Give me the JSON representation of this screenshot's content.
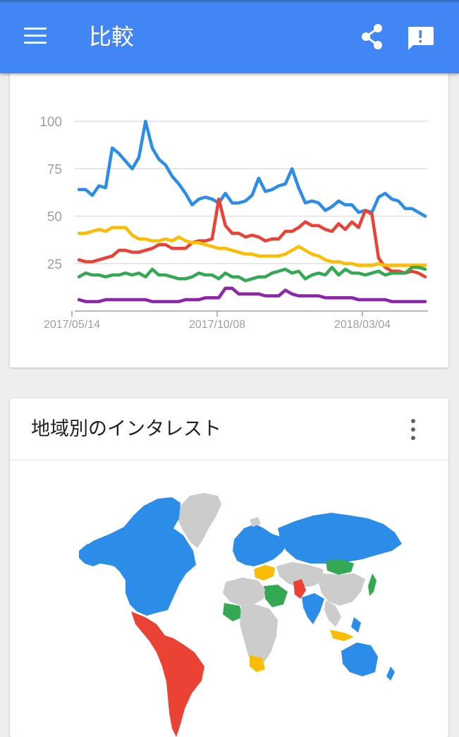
{
  "appbar": {
    "title": "比較",
    "color": "#4285f4",
    "menu_icon": "hamburger-menu-icon",
    "share_icon": "share-icon",
    "feedback_icon": "feedback-icon"
  },
  "chart_data": {
    "type": "line",
    "ylim": [
      0,
      100
    ],
    "y_ticks": [
      "100",
      "75",
      "50",
      "25"
    ],
    "x_ticks": [
      "2017/05/14",
      "2017/10/08",
      "2018/03/04"
    ],
    "grid": true,
    "series": [
      {
        "color": "#2b8de8",
        "values": [
          64,
          64,
          61,
          66,
          65,
          86,
          83,
          79,
          75,
          81,
          100,
          86,
          80,
          77,
          71,
          67,
          62,
          56,
          59,
          60,
          59,
          57,
          62,
          57,
          57,
          58,
          61,
          70,
          63,
          64,
          66,
          67,
          75,
          65,
          57,
          58,
          57,
          53,
          55,
          58,
          56,
          56,
          52,
          53,
          52,
          60,
          62,
          59,
          58,
          54,
          54,
          52,
          50
        ]
      },
      {
        "color": "#ea4335",
        "values": [
          27,
          26,
          26,
          27,
          28,
          29,
          32,
          32,
          31,
          31,
          32,
          33,
          35,
          35,
          33,
          33,
          33,
          36,
          37,
          37,
          38,
          59,
          45,
          41,
          41,
          39,
          40,
          39,
          37,
          38,
          38,
          42,
          42,
          44,
          47,
          45,
          45,
          43,
          42,
          46,
          43,
          47,
          44,
          53,
          51,
          28,
          23,
          21,
          21,
          20,
          21,
          20,
          18
        ]
      },
      {
        "color": "#fbbc05",
        "values": [
          41,
          41,
          42,
          43,
          42,
          44,
          44,
          44,
          40,
          38,
          38,
          37,
          37,
          38,
          37,
          39,
          37,
          36,
          36,
          35,
          34,
          33,
          33,
          32,
          31,
          30,
          30,
          29,
          29,
          29,
          29,
          30,
          32,
          34,
          32,
          30,
          29,
          27,
          26,
          26,
          25,
          25,
          24,
          24,
          24,
          25,
          24,
          24,
          24,
          24,
          24,
          24,
          24
        ]
      },
      {
        "color": "#34a853",
        "values": [
          18,
          20,
          19,
          19,
          18,
          19,
          19,
          20,
          19,
          20,
          18,
          22,
          19,
          19,
          18,
          17,
          17,
          18,
          20,
          19,
          19,
          17,
          20,
          18,
          18,
          16,
          17,
          18,
          18,
          20,
          21,
          22,
          20,
          21,
          17,
          19,
          20,
          19,
          23,
          19,
          22,
          20,
          20,
          19,
          20,
          21,
          19,
          20,
          20,
          20,
          23,
          23,
          22
        ]
      },
      {
        "color": "#8e24aa",
        "values": [
          6,
          5,
          5,
          5,
          6,
          6,
          6,
          6,
          6,
          6,
          6,
          5,
          5,
          5,
          5,
          5,
          6,
          6,
          6,
          7,
          7,
          7,
          12,
          12,
          9,
          9,
          9,
          9,
          8,
          8,
          8,
          11,
          9,
          8,
          8,
          8,
          8,
          7,
          7,
          7,
          7,
          7,
          6,
          6,
          6,
          6,
          6,
          5,
          5,
          5,
          5,
          5,
          5
        ]
      }
    ]
  },
  "region_card": {
    "heading": "地域別のインタレスト",
    "more_icon": "more-vert-icon"
  },
  "map": {
    "colors": {
      "blue": "#2b8de8",
      "red": "#ea4335",
      "yellow": "#fbbc05",
      "green": "#34a853",
      "gray": "#cccccc"
    }
  }
}
